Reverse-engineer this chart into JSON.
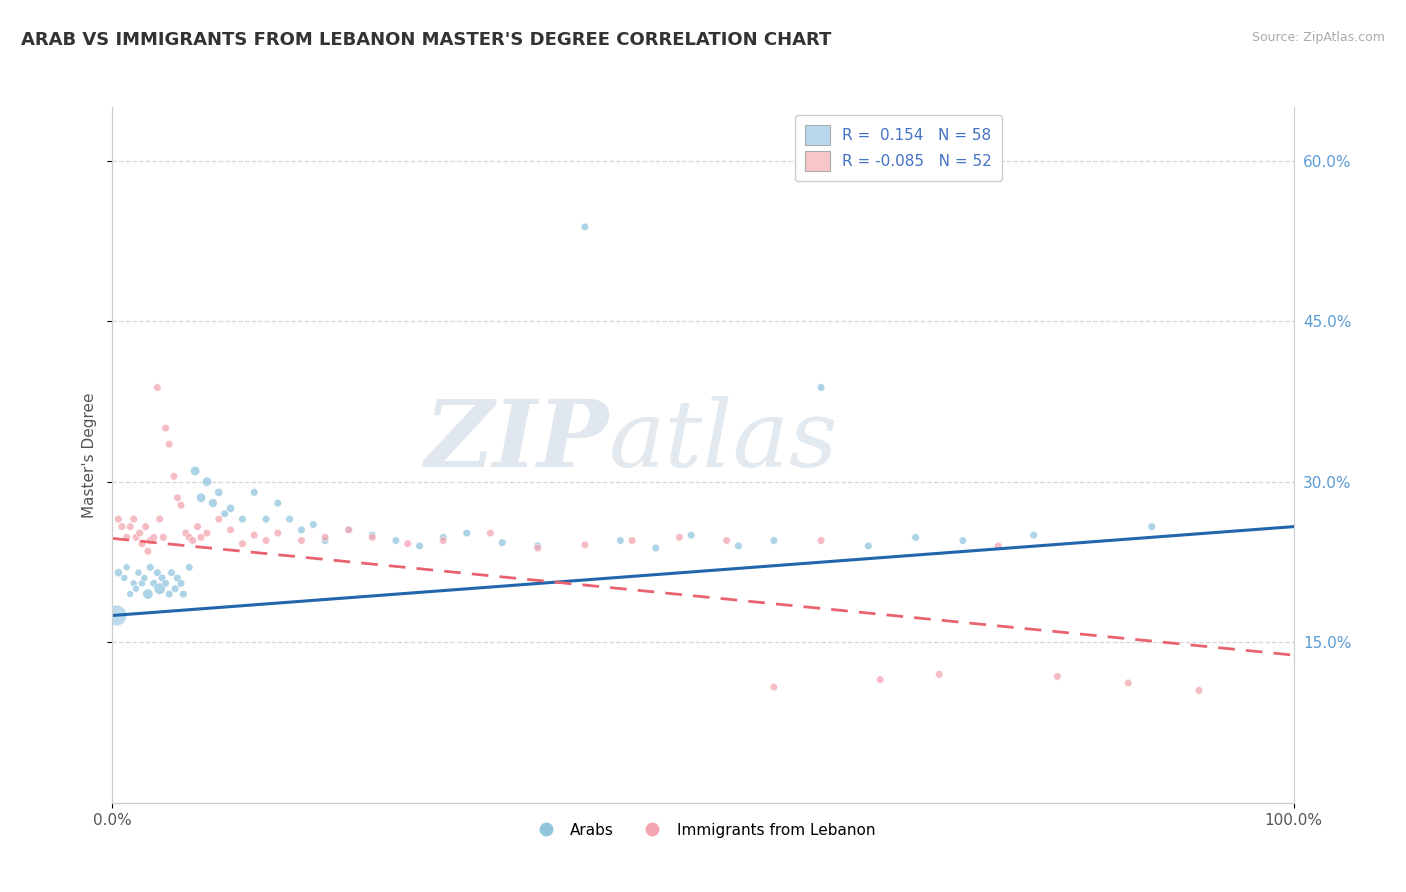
{
  "title": "ARAB VS IMMIGRANTS FROM LEBANON MASTER'S DEGREE CORRELATION CHART",
  "source_text": "Source: ZipAtlas.com",
  "ylabel": "Master's Degree",
  "xlim": [
    0,
    1.0
  ],
  "ylim": [
    0.0,
    0.65
  ],
  "ylim_display": [
    0.0,
    0.65
  ],
  "ytick_vals": [
    0.15,
    0.3,
    0.45,
    0.6
  ],
  "ytick_labels": [
    "15.0%",
    "30.0%",
    "45.0%",
    "60.0%"
  ],
  "xtick_vals": [
    0.0,
    1.0
  ],
  "xtick_labels": [
    "0.0%",
    "100.0%"
  ],
  "watermark_zip": "ZIP",
  "watermark_atlas": "atlas",
  "blue_color": "#92c5de",
  "pink_color": "#f4a6b0",
  "blue_line_color": "#2166ac",
  "pink_line_color": "#e8636e",
  "legend_blue_fill": "#b8d9ed",
  "legend_pink_fill": "#f8c5c8",
  "grid_color": "#cccccc",
  "background_color": "#ffffff",
  "title_fontsize": 13,
  "axis_label_fontsize": 11,
  "tick_fontsize": 11,
  "blue_line_y_start": 0.175,
  "blue_line_y_end": 0.258,
  "pink_line_y_start": 0.247,
  "pink_line_y_end": 0.138,
  "arab_x": [
    0.005,
    0.01,
    0.012,
    0.015,
    0.018,
    0.02,
    0.022,
    0.025,
    0.027,
    0.03,
    0.032,
    0.035,
    0.038,
    0.04,
    0.042,
    0.045,
    0.048,
    0.05,
    0.053,
    0.055,
    0.058,
    0.06,
    0.065,
    0.07,
    0.075,
    0.08,
    0.085,
    0.09,
    0.095,
    0.1,
    0.11,
    0.12,
    0.13,
    0.14,
    0.15,
    0.16,
    0.17,
    0.18,
    0.2,
    0.22,
    0.24,
    0.26,
    0.28,
    0.3,
    0.33,
    0.36,
    0.4,
    0.43,
    0.46,
    0.49,
    0.53,
    0.56,
    0.6,
    0.64,
    0.68,
    0.72,
    0.78,
    0.88
  ],
  "arab_y": [
    0.215,
    0.21,
    0.22,
    0.195,
    0.205,
    0.2,
    0.215,
    0.205,
    0.21,
    0.195,
    0.22,
    0.205,
    0.215,
    0.2,
    0.21,
    0.205,
    0.195,
    0.215,
    0.2,
    0.21,
    0.205,
    0.195,
    0.22,
    0.31,
    0.285,
    0.3,
    0.28,
    0.29,
    0.27,
    0.275,
    0.265,
    0.29,
    0.265,
    0.28,
    0.265,
    0.255,
    0.26,
    0.245,
    0.255,
    0.25,
    0.245,
    0.24,
    0.248,
    0.252,
    0.243,
    0.24,
    0.538,
    0.245,
    0.238,
    0.25,
    0.24,
    0.245,
    0.388,
    0.24,
    0.248,
    0.245,
    0.25,
    0.258
  ],
  "arab_sizes": [
    35,
    25,
    25,
    25,
    25,
    25,
    25,
    25,
    25,
    55,
    30,
    30,
    30,
    70,
    30,
    30,
    30,
    30,
    30,
    30,
    30,
    30,
    30,
    45,
    45,
    45,
    40,
    35,
    30,
    35,
    30,
    30,
    30,
    30,
    30,
    30,
    30,
    30,
    30,
    30,
    30,
    30,
    30,
    30,
    30,
    30,
    30,
    30,
    30,
    30,
    30,
    30,
    30,
    30,
    30,
    30,
    30,
    30
  ],
  "leb_x": [
    0.005,
    0.008,
    0.012,
    0.015,
    0.018,
    0.02,
    0.023,
    0.025,
    0.028,
    0.03,
    0.032,
    0.035,
    0.038,
    0.04,
    0.043,
    0.045,
    0.048,
    0.052,
    0.055,
    0.058,
    0.062,
    0.065,
    0.068,
    0.072,
    0.075,
    0.08,
    0.09,
    0.1,
    0.11,
    0.12,
    0.13,
    0.14,
    0.16,
    0.18,
    0.2,
    0.22,
    0.25,
    0.28,
    0.32,
    0.36,
    0.4,
    0.44,
    0.48,
    0.52,
    0.56,
    0.6,
    0.65,
    0.7,
    0.75,
    0.8,
    0.86,
    0.92
  ],
  "leb_y": [
    0.265,
    0.258,
    0.248,
    0.258,
    0.265,
    0.248,
    0.252,
    0.242,
    0.258,
    0.235,
    0.245,
    0.248,
    0.388,
    0.265,
    0.248,
    0.35,
    0.335,
    0.305,
    0.285,
    0.278,
    0.252,
    0.248,
    0.245,
    0.258,
    0.248,
    0.252,
    0.265,
    0.255,
    0.242,
    0.25,
    0.245,
    0.252,
    0.245,
    0.248,
    0.255,
    0.248,
    0.242,
    0.245,
    0.252,
    0.238,
    0.241,
    0.245,
    0.248,
    0.245,
    0.108,
    0.245,
    0.115,
    0.12,
    0.24,
    0.118,
    0.112,
    0.105
  ],
  "leb_sizes": [
    30,
    30,
    30,
    30,
    30,
    30,
    30,
    30,
    30,
    30,
    30,
    30,
    30,
    30,
    30,
    30,
    30,
    30,
    30,
    30,
    30,
    30,
    30,
    30,
    30,
    30,
    30,
    30,
    30,
    30,
    30,
    30,
    30,
    30,
    30,
    30,
    30,
    30,
    30,
    30,
    30,
    30,
    30,
    30,
    30,
    30,
    30,
    30,
    30,
    30,
    30,
    30
  ]
}
